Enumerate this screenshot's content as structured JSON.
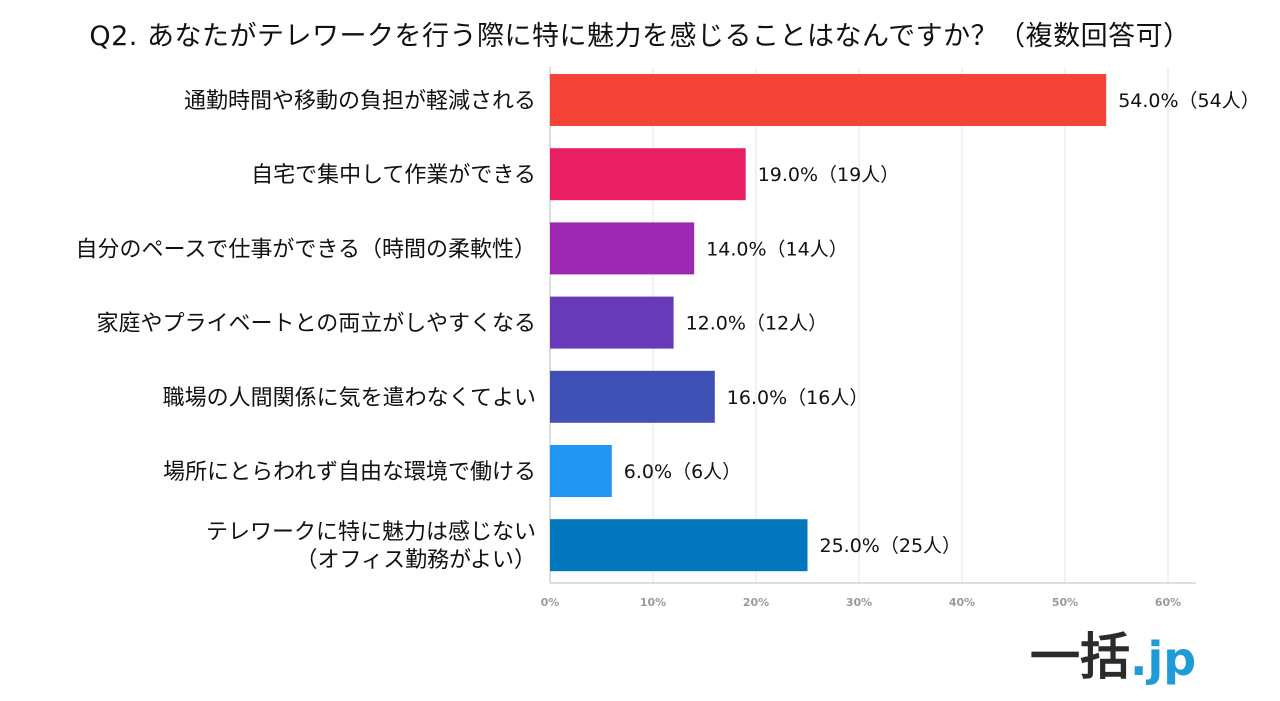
{
  "title": "Q2. あなたがテレワークを行う際に特に魅力を感じることはなんですか？（複数回答可）",
  "chart_data": {
    "type": "bar",
    "orientation": "horizontal",
    "categories": [
      [
        "通勤時間や移動の負担が軽減される"
      ],
      [
        "自宅で集中して作業ができる"
      ],
      [
        "自分のペースで仕事ができる（時間の柔軟性）"
      ],
      [
        "家庭やプライベートとの両立がしやすくなる"
      ],
      [
        "職場の人間関係に気を遣わなくてよい"
      ],
      [
        "場所にとらわれず自由な環境で働ける"
      ],
      [
        "テレワークに特に魅力は感じない",
        "（オフィス勤務がよい）"
      ]
    ],
    "values": [
      54.0,
      19.0,
      14.0,
      12.0,
      16.0,
      6.0,
      25.0
    ],
    "value_labels": [
      "54.0%（54人）",
      "19.0%（19人）",
      "14.0%（14人）",
      "12.0%（12人）",
      "16.0%（16人）",
      "6.0%（6人）",
      "25.0%（25人）"
    ],
    "colors": [
      "#f44336",
      "#e91e63",
      "#9c27b0",
      "#673ab7",
      "#3f51b5",
      "#2196f3",
      "#0277bd"
    ],
    "xlim": [
      0,
      60
    ],
    "ticks": [
      0,
      10,
      20,
      30,
      40,
      50,
      60
    ],
    "tick_labels": [
      "0%",
      "10%",
      "20%",
      "30%",
      "40%",
      "50%",
      "60%"
    ],
    "grid": true
  },
  "logo": {
    "main": "一括",
    "tld": ".jp"
  }
}
